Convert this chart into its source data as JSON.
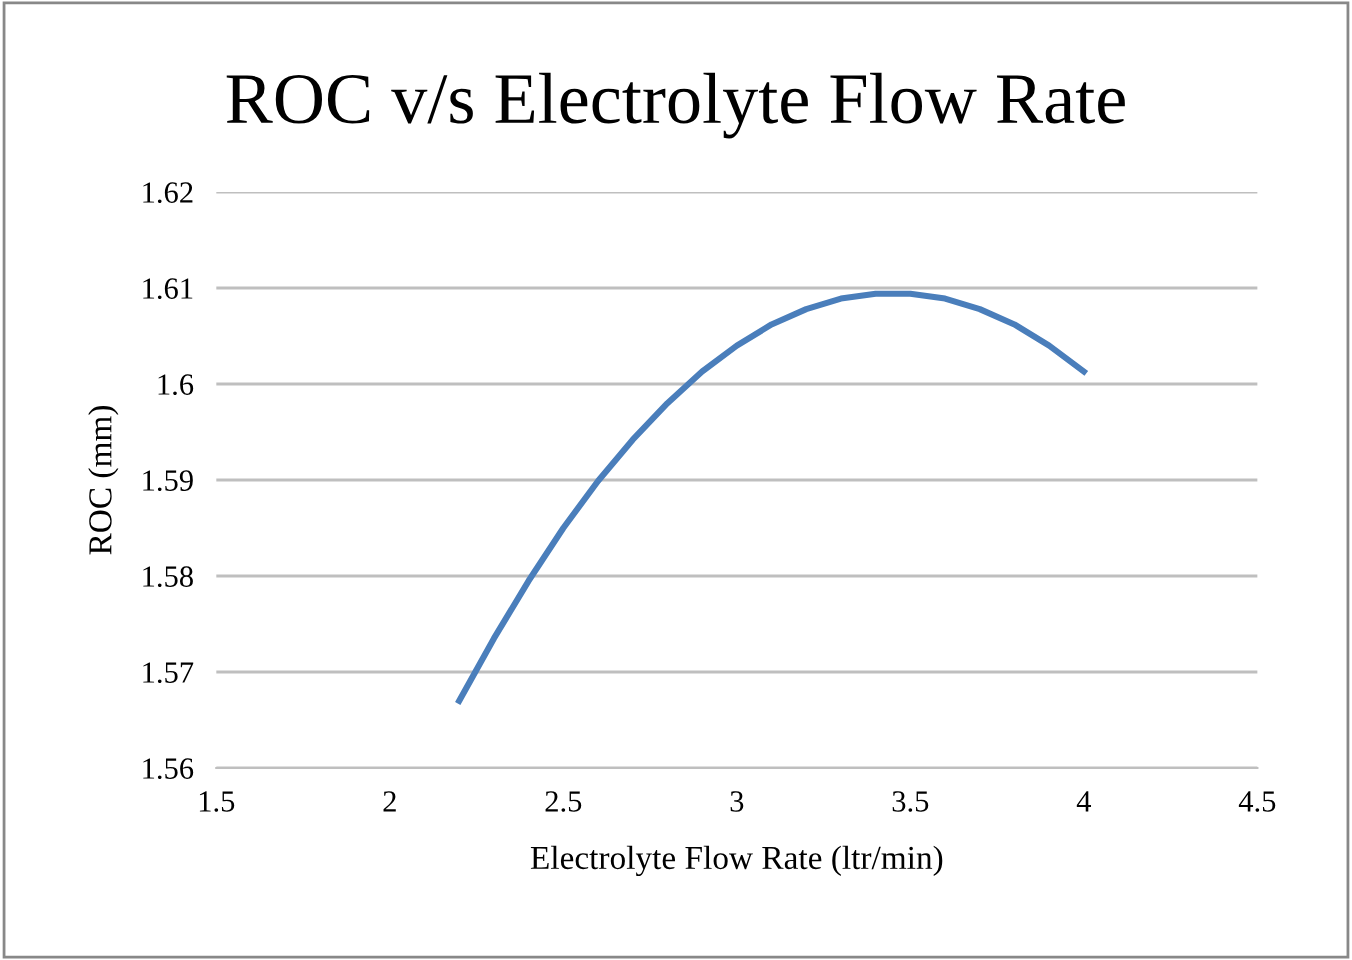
{
  "chart_data": {
    "type": "line",
    "title": "ROC v/s Electrolyte Flow Rate",
    "xlabel": "Electrolyte Flow Rate (ltr/min)",
    "ylabel": "ROC (mm)",
    "x": [
      2.2,
      2.3,
      2.4,
      2.5,
      2.6,
      2.7,
      2.8,
      2.9,
      3.0,
      3.1,
      3.2,
      3.3,
      3.4,
      3.5,
      3.6,
      3.7,
      3.8,
      3.9,
      4.0
    ],
    "series": [
      {
        "color": "#4a7ebb",
        "values": [
          1.567,
          1.5735,
          1.5795,
          1.585,
          1.5899,
          1.5942,
          1.598,
          1.6013,
          1.604,
          1.6062,
          1.6078,
          1.6089,
          1.6094,
          1.6094,
          1.6089,
          1.6078,
          1.6062,
          1.604,
          1.6013
        ]
      }
    ],
    "xlim": [
      1.5,
      4.5
    ],
    "xticks": [
      1.5,
      2,
      2.5,
      3,
      3.5,
      4,
      4.5
    ],
    "ylim": [
      1.56,
      1.62
    ],
    "yticks": [
      1.56,
      1.57,
      1.58,
      1.59,
      1.6,
      1.61,
      1.62
    ],
    "grid": "y",
    "marker": "none",
    "line_style": "solid",
    "legend": false
  }
}
